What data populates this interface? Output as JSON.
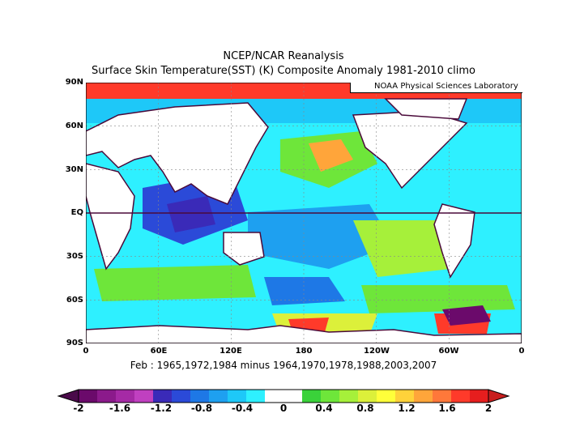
{
  "title_line1": "NCEP/NCAR Reanalysis",
  "title_line2": "Surface Skin Temperature(SST) (K) Composite Anomaly 1981-2010 climo",
  "credit": "NOAA Physical Sciences Laboratory",
  "subtitle": "Feb : 1965,1972,1984 minus 1964,1970,1978,1988,2003,2007",
  "lat_labels": [
    "90N",
    "60N",
    "30N",
    "EQ",
    "30S",
    "60S",
    "90S"
  ],
  "lon_labels": [
    "0",
    "60E",
    "120E",
    "180",
    "120W",
    "60W",
    "0"
  ],
  "colorbar": {
    "labels": [
      "-2",
      "-1.6",
      "-1.2",
      "-0.8",
      "-0.4",
      "0",
      "0.4",
      "0.8",
      "1.2",
      "1.6",
      "2"
    ],
    "colors": [
      "#6b0a6b",
      "#8b1a8b",
      "#a52aa5",
      "#c040c0",
      "#3a2ab8",
      "#2b4ad8",
      "#1e78e6",
      "#1ea0f0",
      "#1ec8f8",
      "#2ef0ff",
      "#ffffff",
      "#ffffff",
      "#3ad23a",
      "#6ee63a",
      "#a6f03a",
      "#dcf03a",
      "#ffff3a",
      "#ffd23a",
      "#ffa53a",
      "#ff783a",
      "#ff3a2a",
      "#e61e1e"
    ]
  },
  "map": {
    "lat_range": [
      -90,
      90
    ],
    "lon_range": [
      0,
      360
    ],
    "field_colors": {
      "land": "#ffffff",
      "coast": "#4a0a3a",
      "cyan": "#2ef0ff",
      "lightblue": "#1ec8f8",
      "blue": "#1e78e6",
      "darkblue": "#2b4ad8",
      "green": "#6ee63a",
      "lightgreen": "#a6f03a",
      "yellow": "#dcf03a",
      "orange": "#ffa53a",
      "red": "#ff3a2a"
    }
  }
}
